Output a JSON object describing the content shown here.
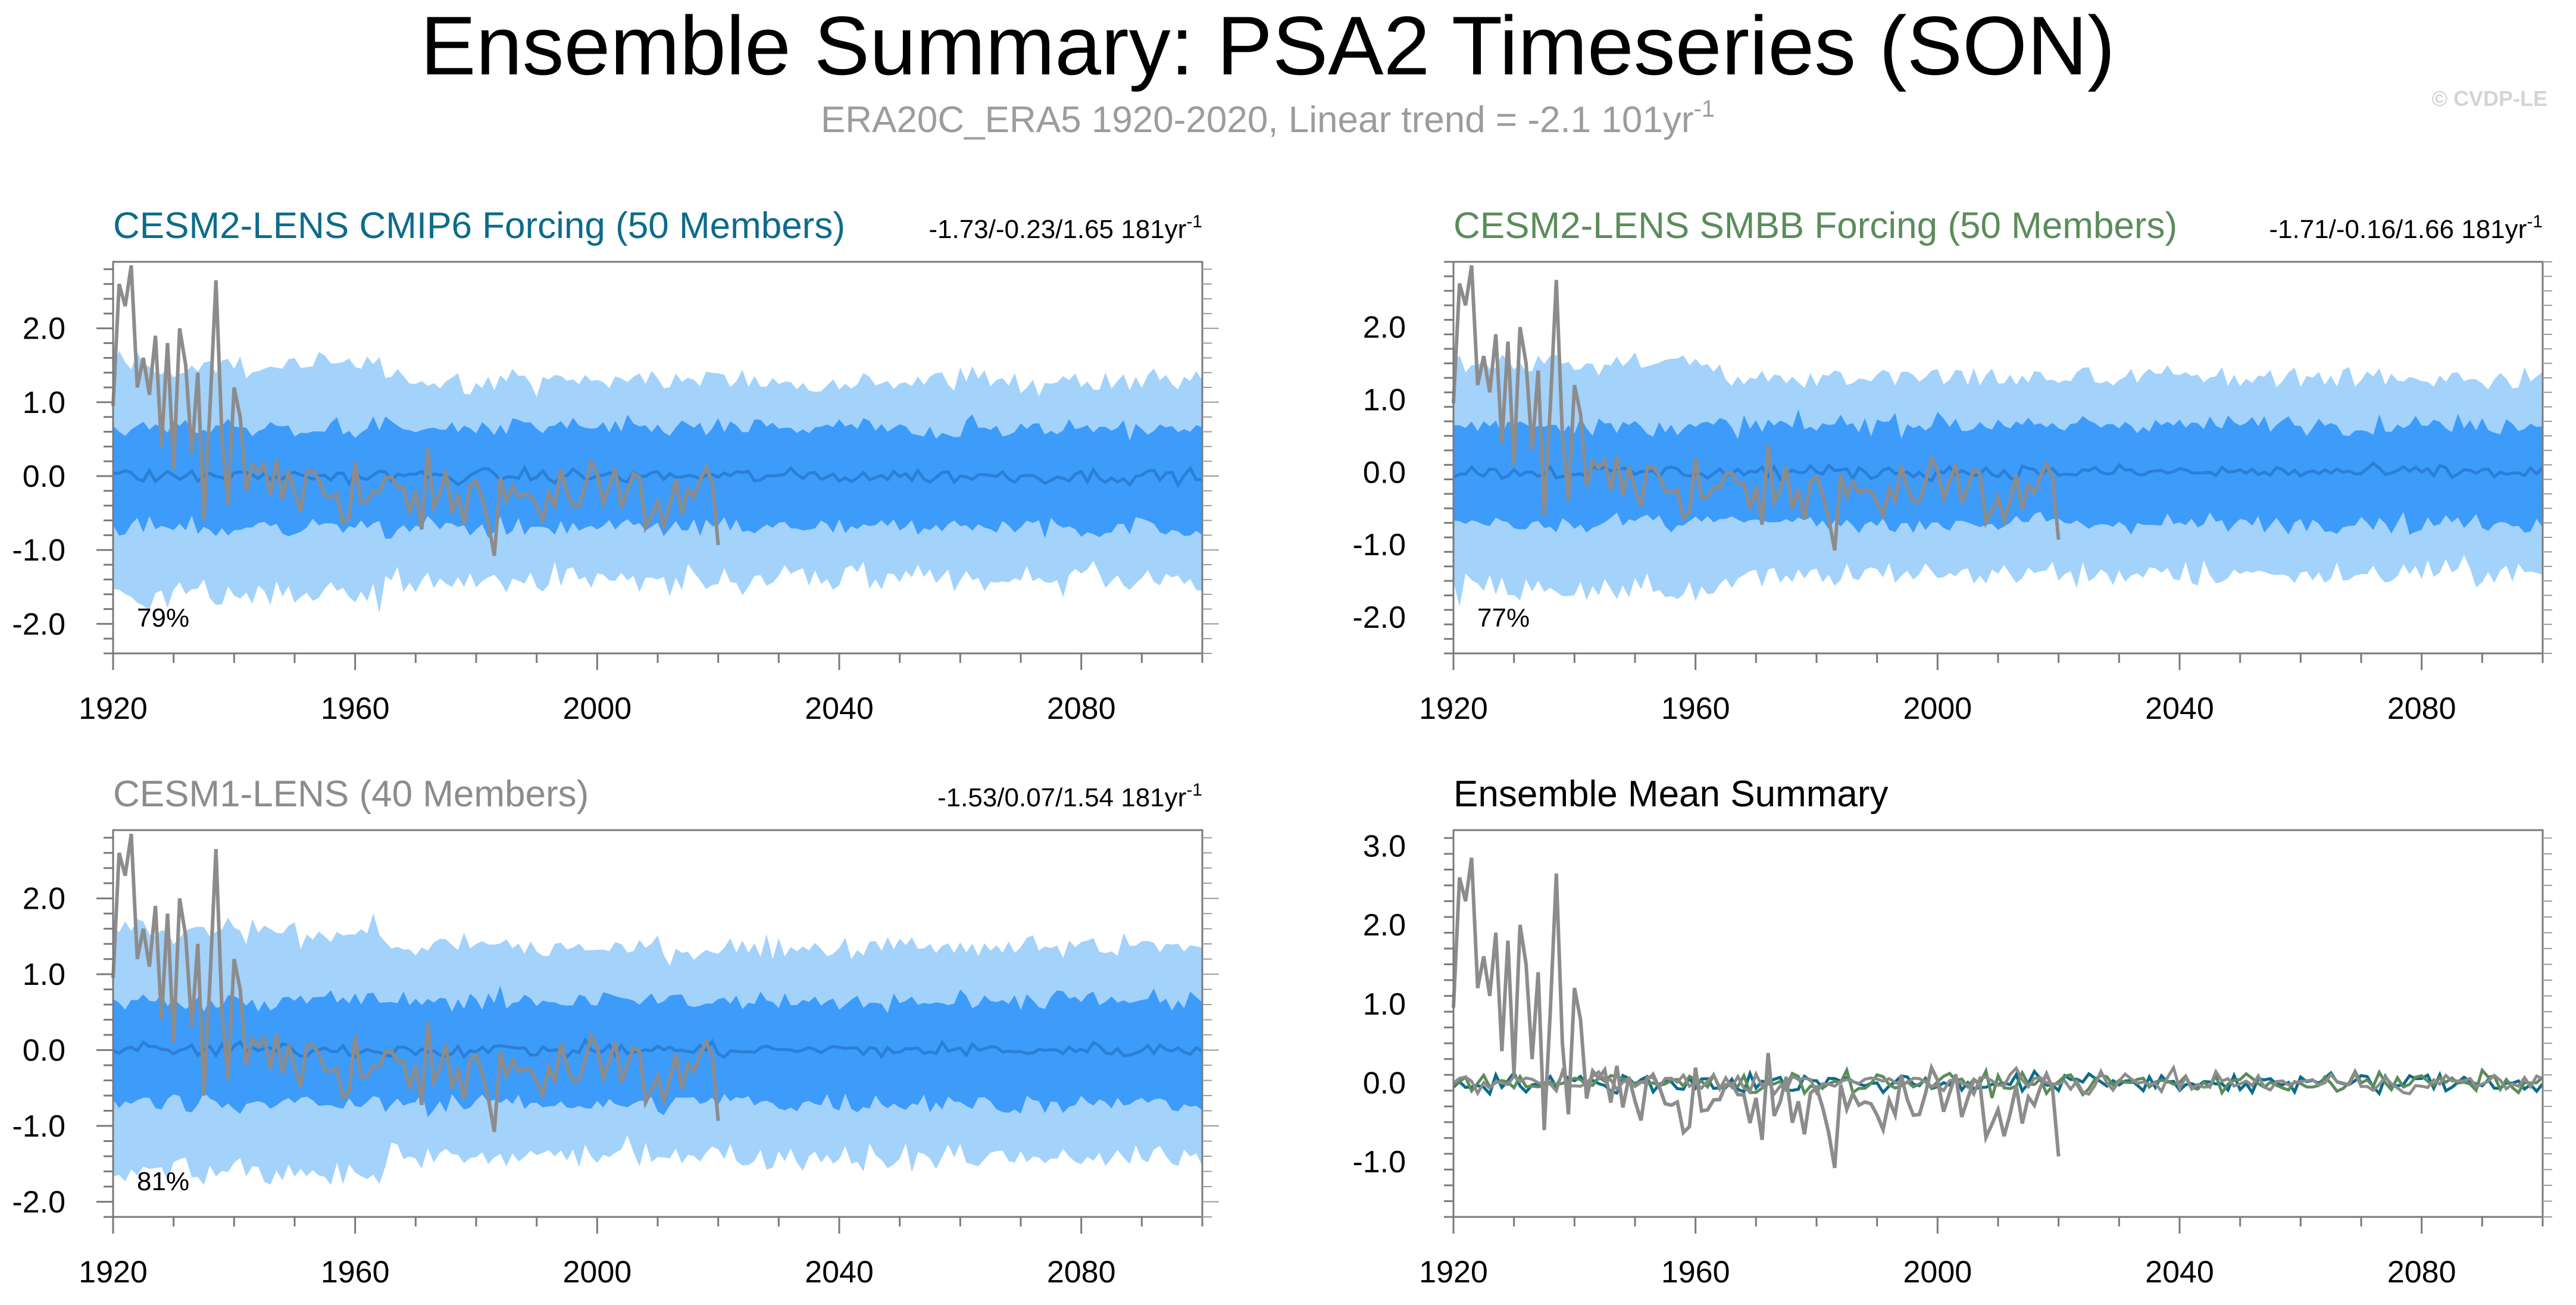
{
  "title": "Ensemble Summary: PSA2 Timeseries (SON)",
  "subtitle": {
    "text": "ERA20C_ERA5 1920-2020, Linear trend = -2.1 101yr",
    "sup": "-1"
  },
  "copyright": "© CVDP-LE",
  "colors": {
    "outer_band": "#a3d2fb",
    "inner_band": "#3d9bfa",
    "ens_mean": "#2a7fd6",
    "observed": "#8c8c8c",
    "cesm2_cmip6": "#0c6b8c",
    "cesm2_smbb": "#5b8c5b",
    "cesm1": "#8c8c8c"
  },
  "chart_data": [
    {
      "id": "cesm2-cmip6",
      "type": "area",
      "title": "CESM2-LENS CMIP6 Forcing (50 Members)",
      "title_color": "#0c6b8c",
      "range": {
        "text": "-1.73/-0.23/1.65 181yr",
        "sup": "-1"
      },
      "percent": "79%",
      "xlim": [
        1920,
        2100
      ],
      "ylim": [
        -2.4,
        2.9
      ],
      "xticks": [
        "1920",
        "1960",
        "2000",
        "2040",
        "2080"
      ],
      "yticks": [
        "2.0",
        "1.0",
        "0.0",
        "-1.0",
        "-2.0"
      ],
      "series": [
        {
          "name": "ensemble 10-90% range",
          "kind": "band",
          "low": -1.4,
          "high": 1.3
        },
        {
          "name": "ensemble 25-75% range",
          "kind": "band",
          "low": -0.7,
          "high": 0.65
        },
        {
          "name": "ensemble mean",
          "kind": "line",
          "value": 0.0
        },
        {
          "name": "ERA20C_ERA5",
          "kind": "line",
          "x_range": [
            1920,
            2020
          ]
        }
      ]
    },
    {
      "id": "cesm2-smbb",
      "type": "area",
      "title": "CESM2-LENS SMBB Forcing (50 Members)",
      "title_color": "#5b8c5b",
      "range": {
        "text": "-1.71/-0.16/1.66 181yr",
        "sup": "-1"
      },
      "percent": "77%",
      "xlim": [
        1920,
        2100
      ],
      "ylim": [
        -2.5,
        2.9
      ],
      "xticks": [
        "1920",
        "1960",
        "2000",
        "2040",
        "2080"
      ],
      "yticks": [
        "2.0",
        "1.0",
        "0.0",
        "-1.0",
        "-2.0"
      ],
      "series": [
        {
          "name": "ensemble 10-90% range",
          "kind": "band",
          "low": -1.4,
          "high": 1.3
        },
        {
          "name": "ensemble 25-75% range",
          "kind": "band",
          "low": -0.7,
          "high": 0.65
        },
        {
          "name": "ensemble mean",
          "kind": "line",
          "value": 0.0
        },
        {
          "name": "ERA20C_ERA5",
          "kind": "line",
          "x_range": [
            1920,
            2020
          ]
        }
      ]
    },
    {
      "id": "cesm1",
      "type": "area",
      "title": "CESM1-LENS (40 Members)",
      "title_color": "#8c8c8c",
      "range": {
        "text": "-1.53/0.07/1.54 181yr",
        "sup": "-1"
      },
      "percent": "81%",
      "xlim": [
        1920,
        2100
      ],
      "ylim": [
        -2.2,
        2.9
      ],
      "xticks": [
        "1920",
        "1960",
        "2000",
        "2040",
        "2080"
      ],
      "yticks": [
        "2.0",
        "1.0",
        "0.0",
        "-1.0",
        "-2.0"
      ],
      "series": [
        {
          "name": "ensemble 10-90% range",
          "kind": "band",
          "low": -1.4,
          "high": 1.35
        },
        {
          "name": "ensemble 25-75% range",
          "kind": "band",
          "low": -0.7,
          "high": 0.65
        },
        {
          "name": "ensemble mean",
          "kind": "line",
          "value": 0.0
        },
        {
          "name": "ERA20C_ERA5",
          "kind": "line",
          "x_range": [
            1920,
            2020
          ]
        }
      ]
    },
    {
      "id": "ens-mean",
      "type": "line",
      "title": "Ensemble Mean Summary",
      "title_color": "#000000",
      "xlim": [
        1920,
        2100
      ],
      "ylim": [
        -1.7,
        3.2
      ],
      "xticks": [
        "1920",
        "1960",
        "2000",
        "2040",
        "2080"
      ],
      "yticks": [
        "3.0",
        "2.0",
        "1.0",
        "0.0",
        "-1.0"
      ],
      "series": [
        {
          "name": "CESM2-LENS CMIP6 Forcing",
          "kind": "line",
          "color": "#0c6b8c"
        },
        {
          "name": "CESM2-LENS SMBB Forcing",
          "kind": "line",
          "color": "#5b8c5b"
        },
        {
          "name": "CESM1-LENS",
          "kind": "line",
          "color": "#8c8c8c"
        },
        {
          "name": "ERA20C_ERA5",
          "kind": "line",
          "color": "#8c8c8c",
          "x_range": [
            1920,
            2020
          ]
        }
      ]
    }
  ]
}
